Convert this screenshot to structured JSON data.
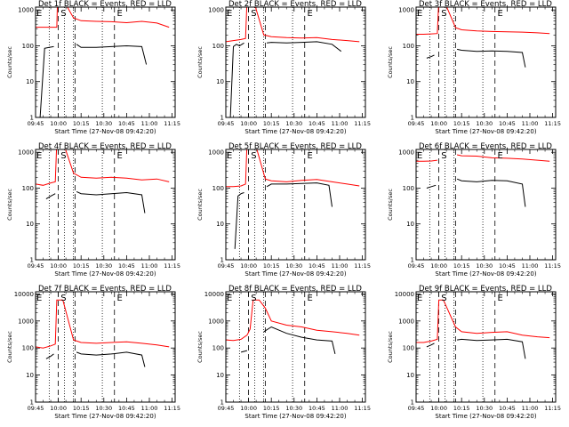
{
  "chart_data": [
    {
      "type": "line",
      "title": "Det 1f BLACK = Events, RED = LLD",
      "xlabel": "Start Time (27-Nov-08 09:42:20)",
      "ylabel": "Counts/sec",
      "yscale": "log",
      "ylim": [
        1,
        1200
      ],
      "xticks": [
        "09:45",
        "10:00",
        "10:15",
        "10:30",
        "10:45",
        "11:00",
        "11:15"
      ],
      "yticks": [
        "1",
        "10",
        "100",
        "1000"
      ],
      "markers": [
        "E",
        "S",
        "E"
      ],
      "series": [
        {
          "name": "RED",
          "color": "#ff0000",
          "segments": [
            {
              "x": [
                0,
                5,
                10,
                14,
                14.5,
                18,
                25,
                30,
                40,
                50,
                60,
                70,
                80,
                88
              ],
              "y": [
                330,
                330,
                330,
                330,
                2000,
                2000,
                600,
                500,
                480,
                470,
                440,
                480,
                430,
                330
              ]
            }
          ]
        },
        {
          "name": "BLACK",
          "color": "#000000",
          "segments": [
            {
              "x": [
                3,
                6,
                9,
                12
              ],
              "y": [
                1,
                85,
                90,
                95
              ]
            },
            {
              "x": [
                27,
                30,
                40,
                50,
                60,
                70,
                73
              ],
              "y": [
                110,
                90,
                90,
                95,
                100,
                95,
                30
              ]
            }
          ]
        }
      ]
    },
    {
      "type": "line",
      "title": "Det 2f BLACK = Events, RED = LLD",
      "xlabel": "Start Time (27-Nov-08 09:42:20)",
      "ylabel": "Counts/sec",
      "yscale": "log",
      "ylim": [
        1,
        1200
      ],
      "xticks": [
        "09:45",
        "10:00",
        "10:15",
        "10:30",
        "10:45",
        "11:00",
        "11:15"
      ],
      "yticks": [
        "1",
        "10",
        "100",
        "1000"
      ],
      "markers": [
        "E",
        "S",
        "E"
      ],
      "series": [
        {
          "name": "RED",
          "color": "#ff0000",
          "segments": [
            {
              "x": [
                0,
                5,
                10,
                13,
                14,
                18,
                25,
                30,
                40,
                50,
                60,
                70,
                80,
                88
              ],
              "y": [
                130,
                140,
                150,
                160,
                2000,
                2000,
                200,
                180,
                170,
                165,
                170,
                150,
                140,
                130
              ]
            }
          ]
        },
        {
          "name": "BLACK",
          "color": "#000000",
          "segments": [
            {
              "x": [
                3,
                5,
                7,
                9,
                12
              ],
              "y": [
                1,
                95,
                110,
                100,
                120
              ]
            },
            {
              "x": [
                27,
                30,
                40,
                50,
                60,
                70,
                76
              ],
              "y": [
                120,
                125,
                120,
                125,
                130,
                110,
                70
              ]
            }
          ]
        }
      ]
    },
    {
      "type": "line",
      "title": "Det 3f BLACK = Events, RED = LLD",
      "xlabel": "Start Time (27-Nov-08 09:42:20)",
      "ylabel": "Counts/sec",
      "yscale": "log",
      "ylim": [
        1,
        1200
      ],
      "xticks": [
        "09:45",
        "10:00",
        "10:15",
        "10:30",
        "10:45",
        "11:00",
        "11:15"
      ],
      "yticks": [
        "1",
        "10",
        "100",
        "1000"
      ],
      "markers": [
        "E",
        "S",
        "E"
      ],
      "series": [
        {
          "name": "RED",
          "color": "#ff0000",
          "segments": [
            {
              "x": [
                0,
                5,
                10,
                14,
                15,
                18,
                26,
                30,
                40,
                50,
                60,
                70,
                80,
                88
              ],
              "y": [
                210,
                210,
                215,
                220,
                2000,
                2000,
                320,
                280,
                260,
                250,
                245,
                240,
                230,
                220
              ]
            }
          ]
        },
        {
          "name": "BLACK",
          "color": "#000000",
          "segments": [
            {
              "x": [
                7,
                10,
                12
              ],
              "y": [
                45,
                50,
                55
              ]
            },
            {
              "x": [
                27,
                30,
                40,
                50,
                60,
                70,
                72
              ],
              "y": [
                80,
                75,
                70,
                72,
                70,
                65,
                25
              ]
            }
          ]
        }
      ]
    },
    {
      "type": "line",
      "title": "Det 4f BLACK = Events, RED = LLD",
      "xlabel": "Start Time (27-Nov-08 09:42:20)",
      "ylabel": "Counts/sec",
      "yscale": "log",
      "ylim": [
        1,
        1200
      ],
      "xticks": [
        "09:45",
        "10:00",
        "10:15",
        "10:30",
        "10:45",
        "11:00",
        "11:15"
      ],
      "yticks": [
        "1",
        "10",
        "100",
        "1000"
      ],
      "markers": [
        "E",
        "S",
        "E"
      ],
      "series": [
        {
          "name": "RED",
          "color": "#ff0000",
          "segments": [
            {
              "x": [
                0,
                5,
                10,
                13,
                14,
                18,
                25,
                30,
                40,
                50,
                60,
                70,
                80,
                88
              ],
              "y": [
                130,
                120,
                140,
                150,
                2000,
                2000,
                260,
                200,
                190,
                200,
                190,
                170,
                180,
                150
              ]
            }
          ]
        },
        {
          "name": "BLACK",
          "color": "#000000",
          "segments": [
            {
              "x": [
                7,
                10,
                13
              ],
              "y": [
                50,
                60,
                70
              ]
            },
            {
              "x": [
                27,
                30,
                40,
                50,
                60,
                70,
                72
              ],
              "y": [
                80,
                70,
                65,
                70,
                75,
                65,
                20
              ]
            }
          ]
        }
      ]
    },
    {
      "type": "line",
      "title": "Det 5f BLACK = Events, RED = LLD",
      "xlabel": "Start Time (27-Nov-08 09:42:20)",
      "ylabel": "Counts/sec",
      "yscale": "log",
      "ylim": [
        1,
        1200
      ],
      "xticks": [
        "09:45",
        "10:00",
        "10:15",
        "10:30",
        "10:45",
        "11:00",
        "11:15"
      ],
      "yticks": [
        "1",
        "10",
        "100",
        "1000"
      ],
      "markers": [
        "E",
        "S",
        "E"
      ],
      "series": [
        {
          "name": "RED",
          "color": "#ff0000",
          "segments": [
            {
              "x": [
                0,
                5,
                10,
                13,
                14,
                19,
                26,
                30,
                40,
                50,
                60,
                70,
                80,
                88
              ],
              "y": [
                110,
                110,
                115,
                130,
                2000,
                2000,
                180,
                160,
                150,
                165,
                175,
                150,
                130,
                115
              ]
            }
          ]
        },
        {
          "name": "BLACK",
          "color": "#000000",
          "segments": [
            {
              "x": [
                6,
                8,
                10,
                12
              ],
              "y": [
                2,
                60,
                70,
                75
              ]
            },
            {
              "x": [
                27,
                30,
                40,
                50,
                60,
                68,
                70
              ],
              "y": [
                110,
                130,
                130,
                135,
                140,
                120,
                30
              ]
            }
          ]
        }
      ]
    },
    {
      "type": "line",
      "title": "Det 6f BLACK = Events, RED = LLD",
      "xlabel": "Start Time (27-Nov-08 09:42:20)",
      "ylabel": "Counts/sec",
      "yscale": "log",
      "ylim": [
        1,
        1200
      ],
      "xticks": [
        "09:45",
        "10:00",
        "10:15",
        "10:30",
        "10:45",
        "11:00",
        "11:15"
      ],
      "yticks": [
        "1",
        "10",
        "100",
        "1000"
      ],
      "markers": [
        "E",
        "S",
        "E"
      ],
      "series": [
        {
          "name": "RED",
          "color": "#ff0000",
          "segments": [
            {
              "x": [
                0,
                5,
                10,
                14
              ],
              "y": [
                560,
                560,
                570,
                600
              ]
            },
            {
              "x": [
                27,
                30,
                40,
                50,
                60,
                70,
                80,
                88
              ],
              "y": [
                850,
                800,
                780,
                700,
                680,
                650,
                600,
                560
              ]
            }
          ]
        },
        {
          "name": "BLACK",
          "color": "#000000",
          "segments": [
            {
              "x": [
                7,
                10,
                13
              ],
              "y": [
                100,
                110,
                120
              ]
            },
            {
              "x": [
                27,
                30,
                40,
                50,
                60,
                70,
                72
              ],
              "y": [
                180,
                160,
                150,
                165,
                160,
                130,
                30
              ]
            }
          ]
        }
      ]
    },
    {
      "type": "line",
      "title": "Det 7f BLACK = Events, RED = LLD",
      "xlabel": "Start Time (27-Nov-08 09:42:20)",
      "ylabel": "Counts/sec",
      "yscale": "log",
      "ylim": [
        1,
        12000
      ],
      "xticks": [
        "09:45",
        "10:00",
        "10:15",
        "10:30",
        "10:45",
        "11:00",
        "11:15"
      ],
      "yticks": [
        "1",
        "10",
        "100",
        "1000",
        "10000"
      ],
      "markers": [
        "E",
        "S",
        "E"
      ],
      "series": [
        {
          "name": "RED",
          "color": "#ff0000",
          "segments": [
            {
              "x": [
                0,
                5,
                10,
                13,
                14,
                18,
                25,
                30,
                40,
                50,
                60,
                70,
                80,
                88
              ],
              "y": [
                110,
                100,
                120,
                140,
                6000,
                6000,
                200,
                160,
                150,
                160,
                170,
                150,
                130,
                110
              ]
            }
          ]
        },
        {
          "name": "BLACK",
          "color": "#000000",
          "segments": [
            {
              "x": [
                7,
                10,
                12
              ],
              "y": [
                40,
                50,
                60
              ]
            },
            {
              "x": [
                27,
                30,
                40,
                50,
                60,
                70,
                72
              ],
              "y": [
                70,
                60,
                55,
                60,
                70,
                55,
                20
              ]
            }
          ]
        }
      ]
    },
    {
      "type": "line",
      "title": "Det 8f BLACK = Events, RED = LLD",
      "xlabel": "Start Time (27-Nov-08 09:42:20)",
      "ylabel": "Counts/sec",
      "yscale": "log",
      "ylim": [
        1,
        12000
      ],
      "xticks": [
        "09:45",
        "10:00",
        "10:15",
        "10:30",
        "10:45",
        "11:00",
        "11:15"
      ],
      "yticks": [
        "1",
        "10",
        "100",
        "1000",
        "10000"
      ],
      "markers": [
        "E",
        "S",
        "E"
      ],
      "series": [
        {
          "name": "RED",
          "color": "#ff0000",
          "segments": [
            {
              "x": [
                0,
                5,
                10,
                14,
                16,
                18,
                22,
                26,
                30,
                40,
                50,
                60,
                70,
                80,
                88
              ],
              "y": [
                200,
                190,
                210,
                300,
                500,
                6000,
                6000,
                3000,
                1000,
                700,
                600,
                450,
                400,
                350,
                300
              ]
            }
          ]
        },
        {
          "name": "BLACK",
          "color": "#000000",
          "segments": [
            {
              "x": [
                10,
                12,
                14
              ],
              "y": [
                70,
                75,
                80
              ]
            },
            {
              "x": [
                25,
                30,
                40,
                50,
                60,
                70,
                72
              ],
              "y": [
                400,
                600,
                350,
                250,
                200,
                180,
                60
              ]
            }
          ]
        }
      ]
    },
    {
      "type": "line",
      "title": "Det 9f BLACK = Events, RED = LLD",
      "xlabel": "Start Time (27-Nov-08 09:42:20)",
      "ylabel": "Counts/sec",
      "yscale": "log",
      "ylim": [
        1,
        12000
      ],
      "xticks": [
        "09:45",
        "10:00",
        "10:15",
        "10:30",
        "10:45",
        "11:00",
        "11:15"
      ],
      "yticks": [
        "1",
        "10",
        "100",
        "1000",
        "10000"
      ],
      "markers": [
        "E",
        "S",
        "E"
      ],
      "series": [
        {
          "name": "RED",
          "color": "#ff0000",
          "segments": [
            {
              "x": [
                0,
                5,
                10,
                14,
                15,
                18,
                26,
                30,
                40,
                50,
                60,
                70,
                80,
                88
              ],
              "y": [
                160,
                160,
                180,
                210,
                6000,
                6000,
                600,
                400,
                350,
                380,
                400,
                300,
                260,
                240
              ]
            }
          ]
        },
        {
          "name": "BLACK",
          "color": "#000000",
          "segments": [
            {
              "x": [
                7,
                10,
                12
              ],
              "y": [
                110,
                130,
                150
              ]
            },
            {
              "x": [
                27,
                30,
                40,
                50,
                60,
                70,
                72
              ],
              "y": [
                200,
                210,
                190,
                200,
                210,
                170,
                40
              ]
            }
          ]
        }
      ]
    }
  ]
}
